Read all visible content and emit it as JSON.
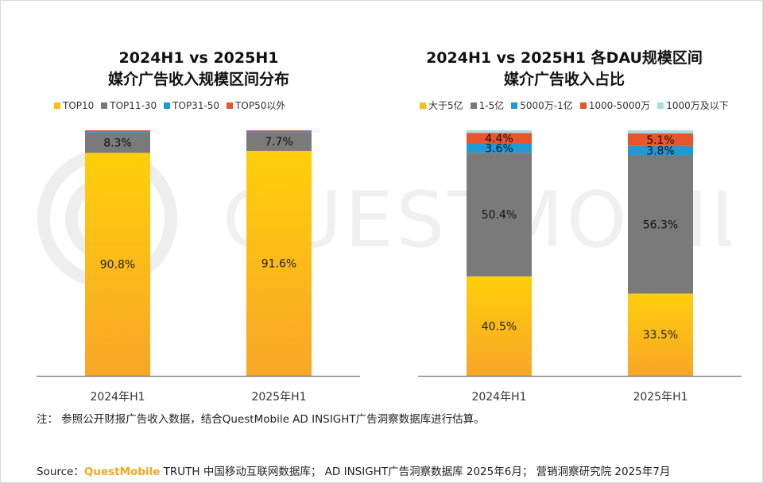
{
  "colors": {
    "gold": "#fbbd19",
    "gray": "#7a7a7a",
    "blue": "#1e9ad6",
    "red": "#e8542b",
    "light_teal": "#a8dde0",
    "axis": "#555555"
  },
  "watermark": {
    "text": "QUESTMOBILE"
  },
  "chart_data": [
    {
      "type": "bar",
      "stacked": true,
      "title_lines": [
        "2024H1 vs 2025H1",
        "媒介广告收入规模区间分布"
      ],
      "categories": [
        "2024年H1",
        "2025年H1"
      ],
      "ylim": [
        0,
        100
      ],
      "series": [
        {
          "name": "TOP10",
          "color": "#fbbd19",
          "values": [
            90.8,
            91.6
          ],
          "labels": [
            "90.8%",
            "91.6%"
          ]
        },
        {
          "name": "TOP11-30",
          "color": "#7a7a7a",
          "values": [
            8.3,
            7.7
          ],
          "labels": [
            "8.3%",
            "7.7%"
          ]
        },
        {
          "name": "TOP31-50",
          "color": "#1e9ad6",
          "values": [
            0.6,
            0.5
          ],
          "labels": [
            "",
            ""
          ]
        },
        {
          "name": "TOP50以外",
          "color": "#e8542b",
          "values": [
            0.3,
            0.2
          ],
          "labels": [
            "",
            ""
          ]
        }
      ]
    },
    {
      "type": "bar",
      "stacked": true,
      "title_lines": [
        "2024H1 vs 2025H1 各DAU规模区间",
        "媒介广告收入占比"
      ],
      "categories": [
        "2024年H1",
        "2025年H1"
      ],
      "ylim": [
        0,
        100
      ],
      "series": [
        {
          "name": "大于5亿",
          "color": "#fbbd19",
          "values": [
            40.5,
            33.5
          ],
          "labels": [
            "40.5%",
            "33.5%"
          ]
        },
        {
          "name": "1-5亿",
          "color": "#7a7a7a",
          "values": [
            50.4,
            56.3
          ],
          "labels": [
            "50.4%",
            "56.3%"
          ]
        },
        {
          "name": "5000万-1亿",
          "color": "#1e9ad6",
          "values": [
            3.6,
            3.8
          ],
          "labels": [
            "3.6%",
            "3.8%"
          ]
        },
        {
          "name": "1000-5000万",
          "color": "#e8542b",
          "values": [
            4.4,
            5.1
          ],
          "labels": [
            "4.4%",
            "5.1%"
          ]
        },
        {
          "name": "1000万及以下",
          "color": "#a8dde0",
          "values": [
            1.1,
            1.3
          ],
          "labels": [
            "",
            ""
          ]
        }
      ]
    }
  ],
  "note": "注：   参照公开财报广告收入数据，结合QuestMobile AD INSIGHT广告洞察数据库进行估算。",
  "source": {
    "prefix": "Source：",
    "brand": "QuestMobile",
    "rest": " TRUTH 中国移动互联网数据库； AD INSIGHT广告洞察数据库 2025年6月； 营销洞察研究院 2025年7月"
  }
}
